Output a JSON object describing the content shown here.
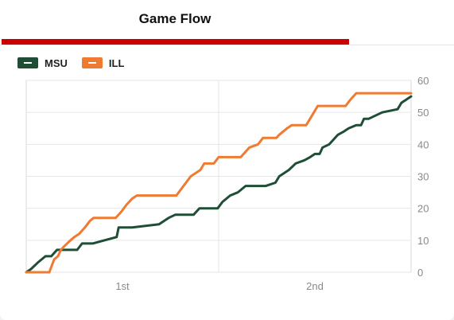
{
  "header": {
    "title": "Game Flow"
  },
  "legend": [
    {
      "label": "MSU",
      "color": "#1f4d36"
    },
    {
      "label": "ILL",
      "color": "#ef7a31"
    }
  ],
  "chart_data": {
    "type": "line",
    "title": "Game Flow",
    "xlabel": "",
    "ylabel": "",
    "x_tick_labels": [
      "1st",
      "2nd"
    ],
    "x_unit": "game minutes (0–40)",
    "xlim": [
      0,
      40
    ],
    "ylim": [
      0,
      60
    ],
    "y_ticks": [
      0,
      10,
      20,
      30,
      40,
      50,
      60
    ],
    "grid": true,
    "legend_position": "top-left",
    "series": [
      {
        "name": "MSU",
        "color": "#1f4d36",
        "points": [
          [
            0,
            0
          ],
          [
            0.5,
            1
          ],
          [
            1.2,
            3
          ],
          [
            2.0,
            5
          ],
          [
            2.6,
            5
          ],
          [
            3.2,
            7
          ],
          [
            4.3,
            7
          ],
          [
            5.3,
            7
          ],
          [
            5.8,
            9
          ],
          [
            6.9,
            9
          ],
          [
            9.4,
            11
          ],
          [
            9.6,
            14
          ],
          [
            11.0,
            14
          ],
          [
            13.8,
            15
          ],
          [
            14.3,
            16
          ],
          [
            14.8,
            17
          ],
          [
            15.5,
            18
          ],
          [
            17.4,
            18
          ],
          [
            18.0,
            20
          ],
          [
            19.9,
            20
          ],
          [
            20.4,
            22
          ],
          [
            21.2,
            24
          ],
          [
            22.0,
            25
          ],
          [
            22.8,
            27
          ],
          [
            24.9,
            27
          ],
          [
            25.9,
            28
          ],
          [
            26.3,
            30
          ],
          [
            26.8,
            31
          ],
          [
            27.3,
            32
          ],
          [
            28.0,
            34
          ],
          [
            28.9,
            35
          ],
          [
            29.5,
            36
          ],
          [
            30.0,
            37
          ],
          [
            30.5,
            37
          ],
          [
            30.8,
            39
          ],
          [
            31.5,
            40
          ],
          [
            32.4,
            43
          ],
          [
            33.0,
            44
          ],
          [
            33.5,
            45
          ],
          [
            34.3,
            46
          ],
          [
            34.8,
            46
          ],
          [
            35.1,
            48
          ],
          [
            35.6,
            48
          ],
          [
            36.3,
            49
          ],
          [
            37.0,
            50
          ],
          [
            38.6,
            51
          ],
          [
            39.0,
            53
          ],
          [
            39.5,
            54
          ],
          [
            40,
            55
          ]
        ]
      },
      {
        "name": "ILL",
        "color": "#ef7a31",
        "points": [
          [
            0,
            0
          ],
          [
            2.4,
            0
          ],
          [
            2.9,
            4
          ],
          [
            3.3,
            5
          ],
          [
            3.6,
            7
          ],
          [
            3.9,
            8
          ],
          [
            4.6,
            10
          ],
          [
            5.0,
            11
          ],
          [
            5.5,
            12
          ],
          [
            6.1,
            14
          ],
          [
            6.6,
            16
          ],
          [
            7.0,
            17
          ],
          [
            9.3,
            17
          ],
          [
            9.9,
            19
          ],
          [
            10.4,
            21
          ],
          [
            11.0,
            23
          ],
          [
            11.5,
            24
          ],
          [
            15.6,
            24
          ],
          [
            16.1,
            26
          ],
          [
            16.6,
            28
          ],
          [
            17.1,
            30
          ],
          [
            17.6,
            31
          ],
          [
            18.1,
            32
          ],
          [
            18.5,
            34
          ],
          [
            19.5,
            34
          ],
          [
            20.0,
            36
          ],
          [
            22.3,
            36
          ],
          [
            23.2,
            39
          ],
          [
            24.1,
            40
          ],
          [
            24.6,
            42
          ],
          [
            26.0,
            42
          ],
          [
            26.3,
            43
          ],
          [
            26.7,
            44
          ],
          [
            27.1,
            45
          ],
          [
            27.6,
            46
          ],
          [
            29.1,
            46
          ],
          [
            29.5,
            48
          ],
          [
            29.9,
            50
          ],
          [
            30.3,
            52
          ],
          [
            33.2,
            52
          ],
          [
            33.7,
            54
          ],
          [
            34.3,
            56
          ],
          [
            40,
            56
          ]
        ]
      }
    ]
  }
}
